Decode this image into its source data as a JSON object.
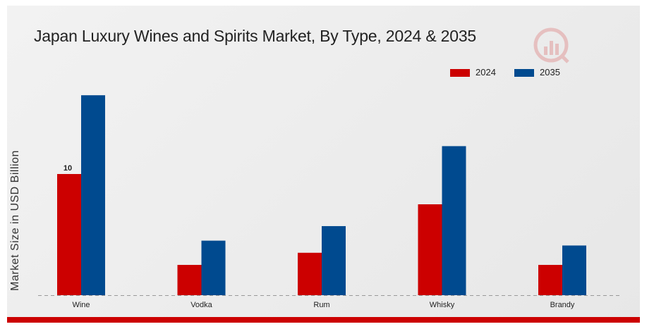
{
  "title": "Japan Luxury Wines and Spirits Market, By Type, 2024 & 2035",
  "logo": "logo-icon",
  "colors": {
    "series2024": "#cc0000",
    "series2035": "#004a8f",
    "accent": "#cc0000"
  },
  "chart_data": {
    "type": "bar",
    "title": "Japan Luxury Wines and Spirits Market, By Type, 2024 & 2035",
    "xlabel": "",
    "ylabel": "Market Size in USD Billion",
    "categories": [
      "Wine",
      "Vodka",
      "Rum",
      "Whisky",
      "Brandy"
    ],
    "series": [
      {
        "name": "2024",
        "values": [
          10,
          2.5,
          3.5,
          7.5,
          2.5
        ],
        "color": "#cc0000"
      },
      {
        "name": "2035",
        "values": [
          16.5,
          4.5,
          5.7,
          12.3,
          4.1
        ],
        "color": "#004a8f"
      }
    ],
    "data_labels": [
      {
        "series": 0,
        "index": 0,
        "text": "10"
      }
    ],
    "ylim": [
      0,
      20
    ],
    "grid": false,
    "legend": "top-right"
  }
}
